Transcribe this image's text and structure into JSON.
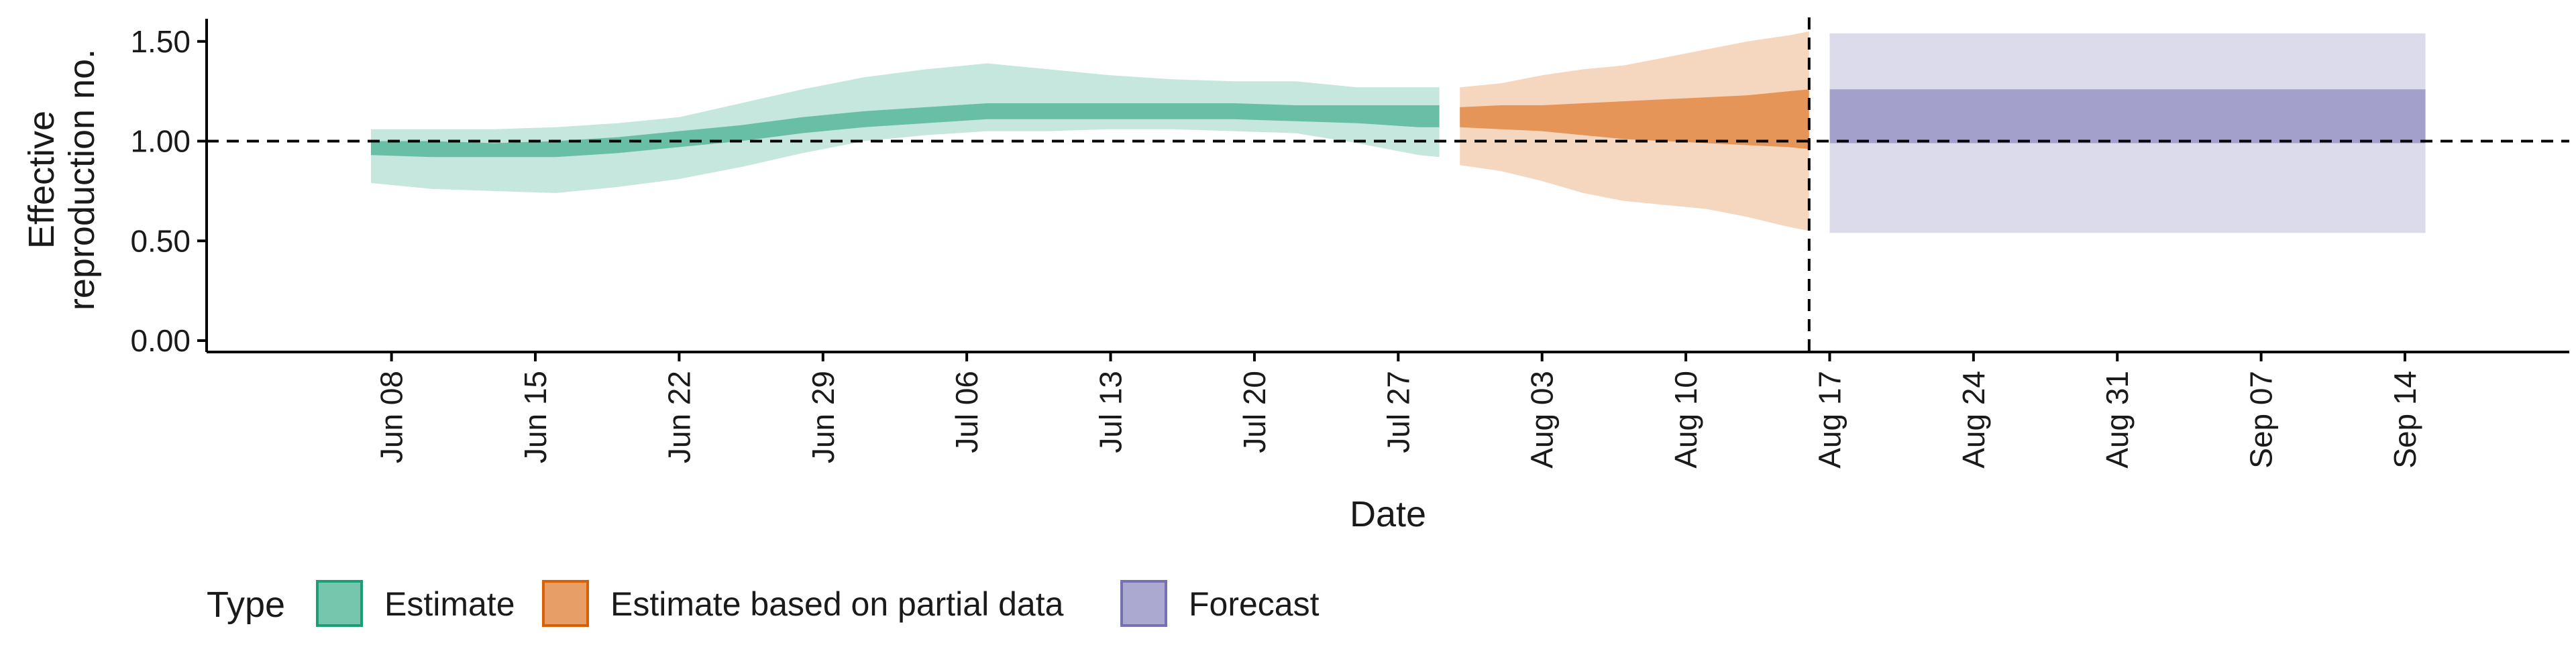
{
  "chart_data": {
    "type": "area",
    "xlabel": "Date",
    "ylabel_lines": [
      "Effective",
      "reproduction no."
    ],
    "ylim": [
      0,
      1.6
    ],
    "yticks": [
      0.0,
      0.5,
      1.0,
      1.5
    ],
    "ytick_labels": [
      "0.00",
      "0.50",
      "1.00",
      "1.50"
    ],
    "xlim": [
      "2020-05-30",
      "2020-09-22"
    ],
    "xticks": [
      "2020-06-08",
      "2020-06-15",
      "2020-06-22",
      "2020-06-29",
      "2020-07-06",
      "2020-07-13",
      "2020-07-20",
      "2020-07-27",
      "2020-08-03",
      "2020-08-10",
      "2020-08-17",
      "2020-08-24",
      "2020-08-31",
      "2020-09-07",
      "2020-09-14"
    ],
    "xtick_labels": [
      "Jun 08",
      "Jun 15",
      "Jun 22",
      "Jun 29",
      "Jul 06",
      "Jul 13",
      "Jul 20",
      "Jul 27",
      "Aug 03",
      "Aug 10",
      "Aug 17",
      "Aug 24",
      "Aug 31",
      "Sep 07",
      "Sep 14"
    ],
    "reference_line_y": 1.0,
    "reference_line_x": "2020-08-16",
    "grid": false,
    "legend": {
      "title": "Type",
      "placement": "bottom",
      "entries": [
        "Estimate",
        "Estimate based on partial data",
        "Forecast"
      ]
    },
    "colors": {
      "Estimate": "#1b9e77",
      "Estimate based on partial data": "#d95f02",
      "Forecast": "#7570b3"
    },
    "series": [
      {
        "name": "Estimate",
        "dates": [
          "2020-06-07",
          "2020-06-10",
          "2020-06-13",
          "2020-06-16",
          "2020-06-19",
          "2020-06-22",
          "2020-06-25",
          "2020-06-28",
          "2020-07-01",
          "2020-07-04",
          "2020-07-07",
          "2020-07-10",
          "2020-07-13",
          "2020-07-16",
          "2020-07-19",
          "2020-07-22",
          "2020-07-25",
          "2020-07-28",
          "2020-07-29"
        ],
        "lower_90": [
          0.79,
          0.76,
          0.75,
          0.74,
          0.77,
          0.81,
          0.87,
          0.94,
          1.0,
          1.03,
          1.05,
          1.05,
          1.06,
          1.06,
          1.05,
          1.04,
          0.99,
          0.93,
          0.92
        ],
        "upper_90": [
          1.06,
          1.06,
          1.06,
          1.07,
          1.09,
          1.12,
          1.19,
          1.26,
          1.32,
          1.36,
          1.39,
          1.36,
          1.33,
          1.31,
          1.3,
          1.3,
          1.27,
          1.27,
          1.27
        ],
        "lower_50": [
          0.93,
          0.92,
          0.92,
          0.92,
          0.94,
          0.97,
          1.0,
          1.04,
          1.07,
          1.09,
          1.11,
          1.11,
          1.11,
          1.11,
          1.11,
          1.1,
          1.09,
          1.07,
          1.07
        ],
        "upper_50": [
          1.0,
          1.0,
          0.99,
          1.0,
          1.02,
          1.05,
          1.08,
          1.12,
          1.15,
          1.17,
          1.19,
          1.19,
          1.19,
          1.19,
          1.19,
          1.18,
          1.18,
          1.18,
          1.18
        ]
      },
      {
        "name": "Estimate based on partial data",
        "dates": [
          "2020-07-30",
          "2020-08-01",
          "2020-08-03",
          "2020-08-05",
          "2020-08-07",
          "2020-08-09",
          "2020-08-11",
          "2020-08-13",
          "2020-08-15",
          "2020-08-16"
        ],
        "lower_90": [
          0.88,
          0.85,
          0.8,
          0.74,
          0.7,
          0.68,
          0.66,
          0.62,
          0.57,
          0.55
        ],
        "upper_90": [
          1.27,
          1.29,
          1.33,
          1.36,
          1.38,
          1.42,
          1.46,
          1.5,
          1.53,
          1.55
        ],
        "lower_50": [
          1.07,
          1.06,
          1.05,
          1.03,
          1.01,
          1.0,
          0.99,
          0.98,
          0.97,
          0.96
        ],
        "upper_50": [
          1.17,
          1.18,
          1.18,
          1.19,
          1.2,
          1.21,
          1.22,
          1.23,
          1.25,
          1.26
        ]
      },
      {
        "name": "Forecast",
        "dates": [
          "2020-08-17",
          "2020-09-15"
        ],
        "lower_90": [
          0.54,
          0.54
        ],
        "upper_90": [
          1.54,
          1.54
        ],
        "lower_50": [
          0.99,
          0.99
        ],
        "upper_50": [
          1.26,
          1.26
        ]
      }
    ]
  }
}
